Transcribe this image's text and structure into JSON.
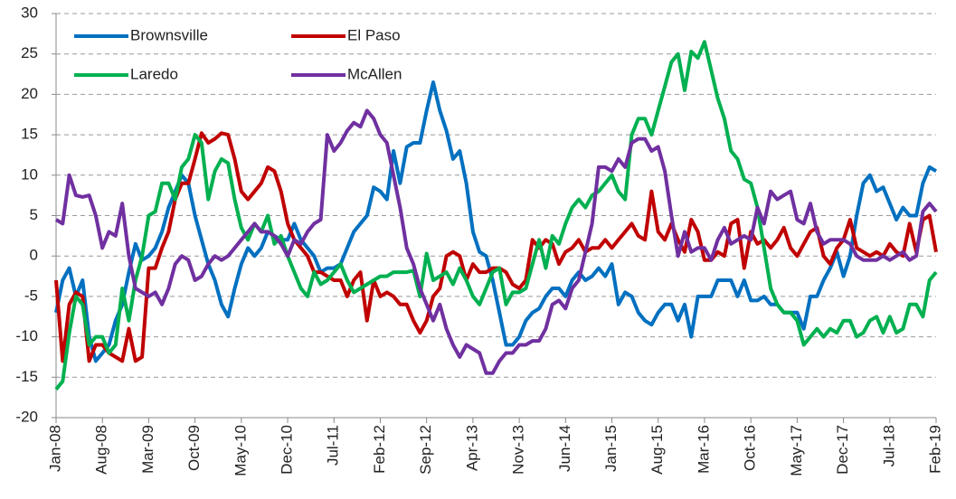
{
  "chart_data": {
    "type": "line",
    "categories": [
      "Jan-08",
      null,
      null,
      null,
      null,
      null,
      null,
      "Aug-08",
      null,
      null,
      null,
      null,
      null,
      null,
      "Mar-09",
      null,
      null,
      null,
      null,
      null,
      null,
      "Oct-09",
      null,
      null,
      null,
      null,
      null,
      null,
      "May-10",
      null,
      null,
      null,
      null,
      null,
      null,
      "Dec-10",
      null,
      null,
      null,
      null,
      null,
      null,
      "Jul-11",
      null,
      null,
      null,
      null,
      null,
      null,
      "Feb-12",
      null,
      null,
      null,
      null,
      null,
      null,
      "Sep-12",
      null,
      null,
      null,
      null,
      null,
      null,
      "Apr-13",
      null,
      null,
      null,
      null,
      null,
      null,
      "Nov-13",
      null,
      null,
      null,
      null,
      null,
      null,
      "Jun-14",
      null,
      null,
      null,
      null,
      null,
      null,
      "Jan-15",
      null,
      null,
      null,
      null,
      null,
      null,
      "Aug-15",
      null,
      null,
      null,
      null,
      null,
      null,
      "Mar-16",
      null,
      null,
      null,
      null,
      null,
      null,
      "Oct-16",
      null,
      null,
      null,
      null,
      null,
      null,
      "May-17",
      null,
      null,
      null,
      null,
      null,
      null,
      "Dec-17",
      null,
      null,
      null,
      null,
      null,
      null,
      "Jul-18",
      null,
      null,
      null,
      null,
      null,
      null,
      "Feb-19"
    ],
    "series": [
      {
        "name": "Brownsville",
        "color": "#0070c0",
        "values": [
          -7,
          -3,
          -1.5,
          -5,
          -3,
          -10,
          -13,
          -12,
          -11,
          -8,
          -6,
          -2,
          1.5,
          -0.5,
          0,
          1,
          3,
          6,
          8,
          10,
          9,
          5,
          2,
          -1,
          -3,
          -6,
          -7.5,
          -4,
          -1,
          1,
          0,
          1,
          3,
          2.5,
          2,
          2,
          4,
          2,
          1,
          0,
          -2,
          -1.5,
          -1.5,
          -1,
          1,
          3,
          4,
          5,
          8.5,
          8,
          7,
          13,
          9,
          13.5,
          14,
          14,
          18,
          21.5,
          18,
          15.5,
          12,
          13,
          9,
          3,
          0.5,
          0,
          -3,
          -7,
          -11,
          -11,
          -10,
          -8,
          -7,
          -6.5,
          -5,
          -4,
          -4,
          -5,
          -3,
          -2,
          -3,
          -2.5,
          -1.5,
          -2.5,
          -1,
          -6,
          -4.5,
          -5,
          -7,
          -8,
          -8.5,
          -7,
          -6,
          -6,
          -8,
          -6,
          -10,
          -5,
          -5,
          -5,
          -3,
          -3,
          -3,
          -5,
          -3,
          -5.5,
          -5.5,
          -5,
          -6,
          -6,
          -7,
          -7,
          -7,
          -9,
          -5,
          -5,
          -3,
          -1.5,
          0.5,
          -2.5,
          0,
          5,
          9,
          10,
          8,
          8.5,
          6.5,
          4.5,
          6,
          5,
          5,
          9,
          11,
          10.5
        ]
      },
      {
        "name": "El Paso",
        "color": "#c00000",
        "values": [
          -3,
          -13,
          -6,
          -4.5,
          -5,
          -13,
          -11,
          -11,
          -12,
          -12.5,
          -13,
          -9,
          -13,
          -12.5,
          -1.5,
          -1.5,
          1,
          3,
          7,
          9,
          9,
          12,
          15.2,
          14,
          14.5,
          15.2,
          15,
          12,
          8,
          7,
          8,
          9,
          11,
          10.5,
          8,
          4,
          2,
          1,
          0,
          -2,
          -2,
          -2.5,
          -3,
          -3,
          -5,
          -3,
          -2,
          -8,
          -3,
          -5,
          -4.5,
          -5,
          -6,
          -6,
          -8,
          -9.5,
          -8,
          -5,
          -4,
          0,
          0.5,
          0,
          -3,
          -1,
          -2,
          -2,
          -1.5,
          -1.5,
          -2,
          -3.5,
          -4,
          -3,
          2,
          1,
          2,
          1.5,
          -1,
          0.5,
          1,
          2,
          0.5,
          1,
          1,
          2,
          1,
          2,
          3,
          4,
          2.5,
          2,
          8,
          3,
          2,
          4,
          2,
          0.5,
          4.5,
          3,
          -0.5,
          -0.5,
          0.5,
          0,
          4,
          4.5,
          -1.5,
          3,
          1.5,
          2,
          1,
          2,
          3.5,
          1,
          0,
          1.5,
          3,
          3.5,
          0,
          -1,
          1,
          2,
          4.5,
          1,
          0.5,
          0,
          0.5,
          0,
          1.5,
          0.5,
          0,
          4,
          0.5,
          4.5,
          5,
          0.5
        ]
      },
      {
        "name": "Laredo",
        "color": "#00b050",
        "values": [
          -16.5,
          -15.5,
          -9.5,
          -5,
          -6,
          -11,
          -10,
          -10,
          -12,
          -11,
          -4,
          -8,
          -3,
          0,
          5,
          5.5,
          9,
          9,
          7,
          11,
          12,
          15,
          14,
          7,
          10.5,
          12,
          11.5,
          7,
          3.5,
          2,
          4,
          3,
          5,
          1.5,
          2.5,
          0,
          -2,
          -4,
          -5,
          -2,
          -3.5,
          -3,
          -2,
          -1,
          -3,
          -4.5,
          -4,
          -3.5,
          -3,
          -2.5,
          -2.5,
          -2,
          -2,
          -2,
          -1.8,
          -5,
          0.3,
          -3,
          -2.5,
          -2,
          -3.5,
          -1.5,
          -3,
          -5,
          -6,
          -4,
          -2,
          -1.5,
          -6,
          -4.5,
          -4.5,
          -4,
          -1,
          2,
          -1.5,
          2.5,
          1.5,
          4,
          6,
          7,
          6,
          7.5,
          8,
          9,
          10,
          8,
          7,
          15,
          17,
          17,
          15,
          18,
          21,
          24,
          25,
          20.5,
          25.3,
          24.5,
          26.5,
          23,
          19.5,
          17,
          13,
          12,
          9.5,
          9,
          6,
          1,
          -4,
          -6,
          -7,
          -7,
          -8,
          -11,
          -10,
          -9,
          -10,
          -9,
          -9.5,
          -8,
          -8,
          -10,
          -9.5,
          -8,
          -7.5,
          -9.5,
          -7.5,
          -9.5,
          -9,
          -6,
          -6,
          -7.5,
          -3,
          -2
        ]
      },
      {
        "name": "McAllen",
        "color": "#7030a0",
        "values": [
          4.5,
          4,
          10,
          7.5,
          7.3,
          7.5,
          5,
          1,
          3,
          2.5,
          6.5,
          0,
          -4,
          -4.5,
          -5,
          -4.5,
          -6,
          -4,
          -1,
          0,
          -0.5,
          -3,
          -2.5,
          -1,
          0,
          -0.5,
          0,
          1,
          2,
          3,
          4,
          3,
          3,
          2.5,
          1.5,
          0,
          2,
          1.5,
          3,
          4,
          4.5,
          15,
          13,
          14,
          15.5,
          16.5,
          16,
          18,
          17,
          15,
          14,
          10,
          6,
          1,
          -1,
          -4,
          -6,
          -8,
          -6,
          -9,
          -11,
          -12.5,
          -11,
          -11.5,
          -12,
          -14.5,
          -14.5,
          -13,
          -12,
          -12,
          -11,
          -11,
          -10.5,
          -10.5,
          -9,
          -6,
          -5.5,
          -6.5,
          -4,
          -3,
          0.5,
          4,
          11,
          11,
          10.5,
          12,
          11,
          14,
          14.5,
          14.5,
          13,
          13.5,
          10.5,
          5,
          0,
          3,
          0.5,
          1,
          1,
          -0.5,
          2,
          3.5,
          1.5,
          2,
          2.5,
          2,
          6,
          4,
          8,
          7,
          7.5,
          8,
          4.5,
          4,
          6.5,
          3,
          1.5,
          2,
          2,
          2,
          1.5,
          0,
          -0.5,
          -0.5,
          -0.5,
          0,
          -0.5,
          0,
          0.5,
          -0.5,
          0,
          5.5,
          6.5,
          5.5
        ]
      }
    ],
    "ylim": [
      -20,
      30
    ],
    "yticks": [
      -20,
      -15,
      -10,
      -5,
      0,
      5,
      10,
      15,
      20,
      25,
      30
    ],
    "grid": true,
    "legend": "top-left"
  }
}
